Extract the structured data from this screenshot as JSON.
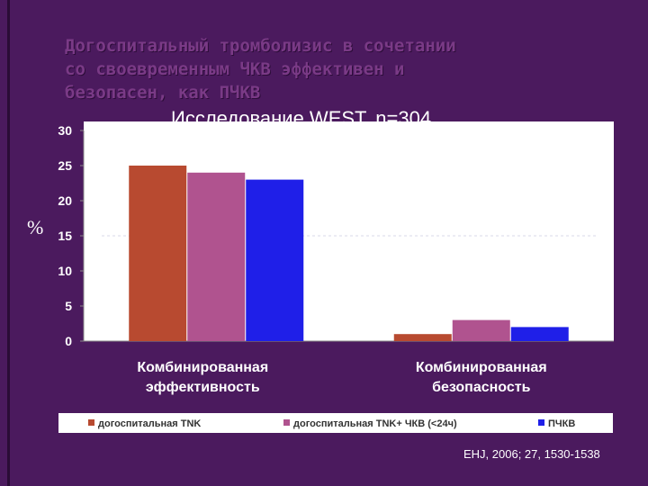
{
  "slide": {
    "title": "Догоспитальный тромболизис в сочетании\nсо своевременным ЧКВ эффективен и\nбезопасен, как ПЧКВ",
    "citation": "EHJ, 2006; 27, 1530-1538"
  },
  "chart_data": {
    "type": "bar",
    "title": "Исследование WEST, n=304",
    "ylabel": "%",
    "xlabel": "",
    "ylim": [
      0,
      30
    ],
    "yticks": [
      0,
      5,
      10,
      15,
      20,
      25,
      30
    ],
    "categories": [
      [
        "Комбинированная",
        "эффективность"
      ],
      [
        "Комбинированная",
        "безопасность"
      ]
    ],
    "series": [
      {
        "name": "догоспитальная TNK",
        "values": [
          25,
          1
        ],
        "color": "#b84a30"
      },
      {
        "name": "догоспитальная TNK+ ЧКВ (<24ч)",
        "values": [
          24,
          3
        ],
        "color": "#b0538f"
      },
      {
        "name": "ПЧКВ",
        "values": [
          23,
          2
        ],
        "color": "#1f1fe8"
      }
    ],
    "legend_position": "bottom",
    "grid": false
  }
}
